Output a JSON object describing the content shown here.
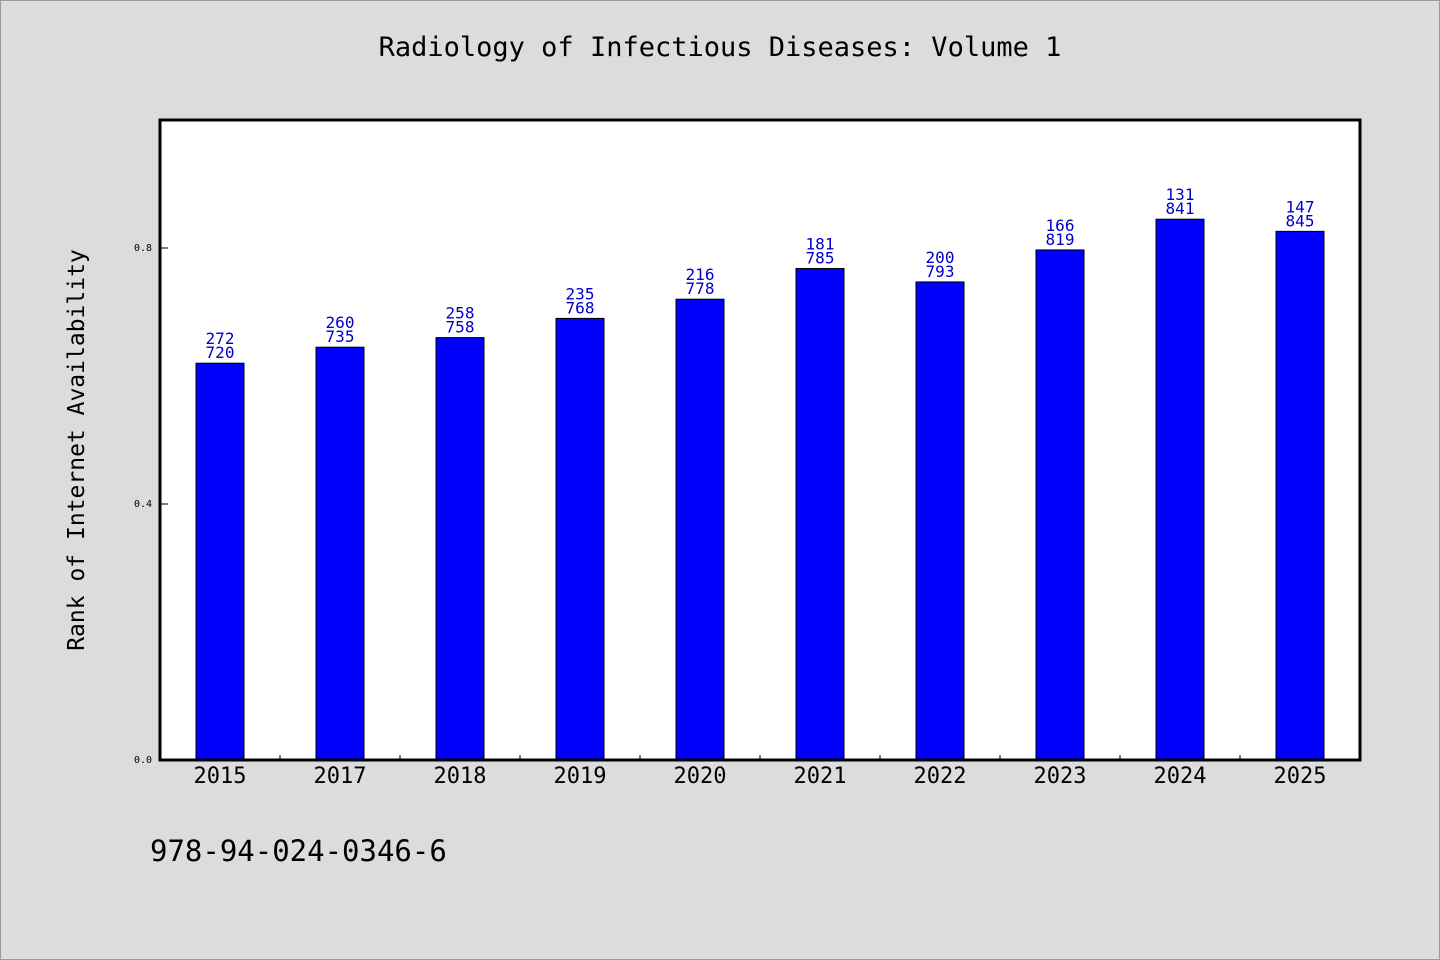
{
  "chart_data": {
    "type": "bar",
    "title": "Radiology of Infectious Diseases: Volume 1",
    "xlabel": "",
    "ylabel": "Rank of Internet Availability",
    "categories": [
      "2015",
      "2017",
      "2018",
      "2019",
      "2020",
      "2021",
      "2022",
      "2023",
      "2024",
      "2025"
    ],
    "values": [
      0.62,
      0.645,
      0.66,
      0.69,
      0.72,
      0.768,
      0.747,
      0.797,
      0.845,
      0.826
    ],
    "bar_labels_top": [
      "272",
      "260",
      "258",
      "235",
      "216",
      "181",
      "200",
      "166",
      "131",
      "147"
    ],
    "bar_labels_bottom": [
      "720",
      "735",
      "758",
      "768",
      "778",
      "785",
      "793",
      "819",
      "841",
      "845"
    ],
    "yticks": [
      "0.0",
      "0.4",
      "0.8"
    ],
    "ytick_values": [
      0.0,
      0.4,
      0.8
    ],
    "ylim": [
      0,
      1.0
    ],
    "grid": false,
    "legend": "none",
    "colors": {
      "bar": "#0000ff",
      "bar_label": "#0000cc",
      "plot_bg": "#ffffff",
      "figure_bg": "#dcdcdc"
    }
  },
  "footer": {
    "isbn": "978-94-024-0346-6"
  }
}
